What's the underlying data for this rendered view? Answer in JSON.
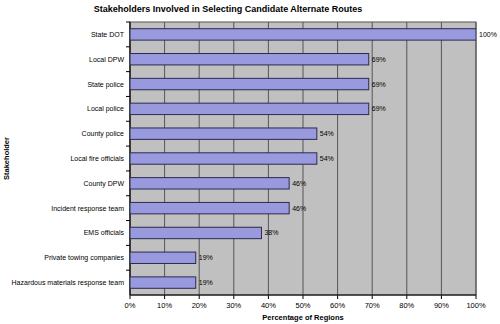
{
  "chart_data": {
    "type": "bar",
    "orientation": "horizontal",
    "title": "Stakeholders Involved in Selecting Candidate Alternate Routes",
    "x_label": "Percentage of Regions",
    "y_label": "Stakeholder",
    "categories": [
      "State DOT",
      "Local DPW",
      "State police",
      "Local police",
      "County police",
      "Local fire officials",
      "County DPW",
      "Incident response team",
      "EMS officials",
      "Private towing companies",
      "Hazardous materials response team"
    ],
    "values": [
      100,
      69,
      69,
      69,
      54,
      54,
      46,
      46,
      38,
      19,
      19
    ],
    "value_labels": [
      "100%",
      "69%",
      "69%",
      "69%",
      "54%",
      "54%",
      "46%",
      "46%",
      "38%",
      "19%",
      "19%"
    ],
    "data_labels": true,
    "color": "#9999dd",
    "grid": true,
    "xlim": [
      0,
      100
    ],
    "xticks": [
      {
        "value": 0,
        "label": "0%"
      },
      {
        "value": 10,
        "label": "10%"
      },
      {
        "value": 20,
        "label": "20%"
      },
      {
        "value": 30,
        "label": "30%"
      },
      {
        "value": 40,
        "label": "40%"
      },
      {
        "value": 50,
        "label": "50%"
      },
      {
        "value": 60,
        "label": "60%"
      },
      {
        "value": 70,
        "label": "70%"
      },
      {
        "value": 80,
        "label": "80%"
      },
      {
        "value": 90,
        "label": "90%"
      },
      {
        "value": 100,
        "label": "100%"
      }
    ]
  }
}
